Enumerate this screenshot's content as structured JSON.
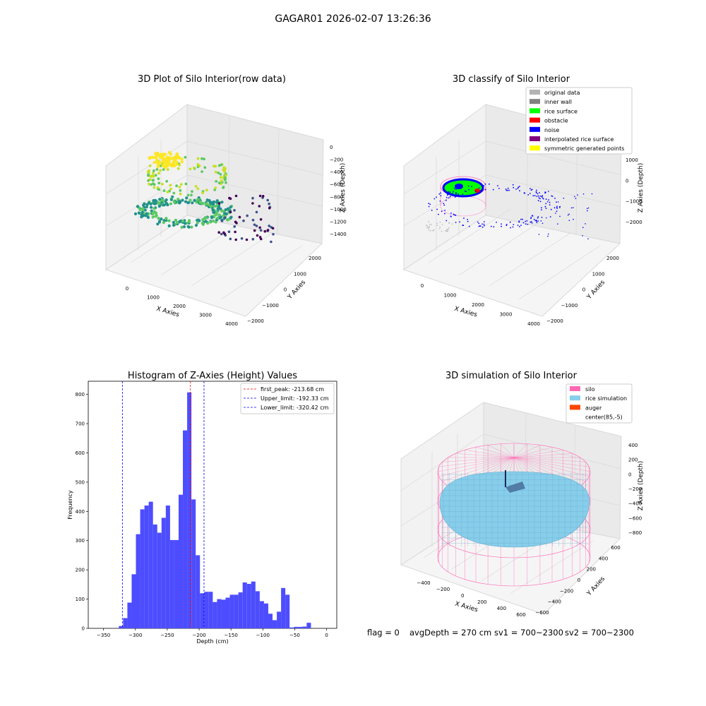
{
  "suptitle": "GAGAR01 2026-02-07 13:26:36",
  "footer": {
    "flag": "flag = 0",
    "avg": "avgDepth = 270 cm",
    "sv1": "sv1 = 700~2300",
    "sv2": "sv2 = 700~2300"
  },
  "colors": {
    "hist_bar": "#4d4dff",
    "peak_line": "#ff0000",
    "limit_line": "#0000ff",
    "pane": "#f2f2f2",
    "grid": "#d9d9d9",
    "silo": "#ff69b4",
    "rice": "#87ceeb",
    "auger": "#ff4500"
  },
  "chart_data": [
    {
      "id": "raw",
      "type": "scatter",
      "title": "3D Plot of Silo Interior(row data)",
      "xlabel": "X Axies",
      "ylabel": "Y Axies",
      "zlabel": "Z Axies (Depth)",
      "xticks": [
        "0",
        "1000",
        "2000",
        "3000",
        "4000"
      ],
      "yticks": [
        "−2000",
        "−1000",
        "0",
        "1000",
        "2000"
      ],
      "zticks": [
        "0",
        "−200",
        "−400",
        "−600",
        "−800",
        "−1000",
        "−1200",
        "−1400"
      ],
      "colormap": "viridis (colored by depth)"
    },
    {
      "id": "classify",
      "type": "scatter",
      "title": "3D classify of Silo Interior",
      "xlabel": "X Axies",
      "ylabel": "Y Axies",
      "zlabel": "Z Axies (Depth)",
      "xticks": [
        "0",
        "1000",
        "2000",
        "3000",
        "4000"
      ],
      "yticks": [
        "−2000",
        "−1000",
        "0",
        "1000",
        "2000"
      ],
      "zticks": [
        "1000",
        "0",
        "−1000",
        "−2000"
      ],
      "legend_position": "upper right",
      "legend": [
        {
          "label": "original data",
          "color": "#b3b3b3"
        },
        {
          "label": "inner wall",
          "color": "#808080"
        },
        {
          "label": "rice surface",
          "color": "#00ff00"
        },
        {
          "label": "obstacle",
          "color": "#ff0000"
        },
        {
          "label": "noise",
          "color": "#0000ff"
        },
        {
          "label": "interpolated rice surface",
          "color": "#800080"
        },
        {
          "label": "symmetric generated points",
          "color": "#ffff00"
        }
      ]
    },
    {
      "id": "hist",
      "type": "bar",
      "title": "Histogram of Z-Axies (Height) Values",
      "xlabel": "Depth (cm)",
      "ylabel": "Frequency",
      "xlim": [
        -374,
        16
      ],
      "ylim": [
        0,
        845
      ],
      "xticks": [
        -350,
        -300,
        -250,
        -200,
        -150,
        -100,
        -50,
        0
      ],
      "yticks": [
        0,
        100,
        200,
        300,
        400,
        500,
        600,
        700,
        800
      ],
      "bin_width": 6.7,
      "bins": [
        [
          -326.0,
          8
        ],
        [
          -319.3,
          35
        ],
        [
          -312.6,
          88
        ],
        [
          -305.9,
          185
        ],
        [
          -299.2,
          322
        ],
        [
          -292.5,
          407
        ],
        [
          -285.8,
          420
        ],
        [
          -279.1,
          433
        ],
        [
          -272.4,
          355
        ],
        [
          -265.7,
          327
        ],
        [
          -259.0,
          378
        ],
        [
          -252.3,
          420
        ],
        [
          -245.6,
          302
        ],
        [
          -238.9,
          302
        ],
        [
          -232.2,
          457
        ],
        [
          -225.5,
          677
        ],
        [
          -218.8,
          807
        ],
        [
          -212.1,
          441
        ],
        [
          -205.4,
          250
        ],
        [
          -198.7,
          120
        ],
        [
          -192.0,
          125
        ],
        [
          -185.3,
          125
        ],
        [
          -178.6,
          90
        ],
        [
          -171.9,
          100
        ],
        [
          -165.2,
          98
        ],
        [
          -158.5,
          105
        ],
        [
          -151.8,
          115
        ],
        [
          -145.1,
          115
        ],
        [
          -138.4,
          123
        ],
        [
          -131.7,
          157
        ],
        [
          -125.0,
          152
        ],
        [
          -118.3,
          160
        ],
        [
          -111.6,
          127
        ],
        [
          -104.9,
          93
        ],
        [
          -98.2,
          85
        ],
        [
          -91.5,
          50
        ],
        [
          -84.8,
          28
        ],
        [
          -78.1,
          57
        ],
        [
          -71.4,
          138
        ],
        [
          -64.7,
          115
        ],
        [
          -58.0,
          3
        ],
        [
          -51.3,
          5
        ],
        [
          -44.6,
          5
        ],
        [
          -37.9,
          6
        ],
        [
          -31.2,
          19
        ]
      ],
      "lines": [
        {
          "label": "first_peak: -213.68 cm",
          "x": -213.68,
          "color": "#ff0000"
        },
        {
          "label": "Upper_limit: -192.33 cm",
          "x": -192.33,
          "color": "#0000ff"
        },
        {
          "label": "Lower_limit: -320.42 cm",
          "x": -320.42,
          "color": "#0000ff"
        }
      ],
      "legend_position": "upper right"
    },
    {
      "id": "sim",
      "type": "scatter",
      "title": "3D simulation of Silo Interior",
      "xlabel": "X Axies",
      "ylabel": "Y Axies",
      "zlabel": "Z Axies (Depth)",
      "xticks": [
        "−400",
        "−200",
        "0",
        "200",
        "400",
        "600"
      ],
      "yticks": [
        "−600",
        "−400",
        "−200",
        "0",
        "200",
        "400",
        "600"
      ],
      "zticks": [
        "400",
        "200",
        "0",
        "−200",
        "−400",
        "−600",
        "−800"
      ],
      "legend_position": "upper right",
      "legend": [
        {
          "label": "silo",
          "color": "#ff69b4"
        },
        {
          "label": "rice simulation",
          "color": "#87ceeb"
        },
        {
          "label": "auger",
          "color": "#ff4500"
        },
        {
          "label": "center(85,-5)",
          "color": ""
        }
      ]
    }
  ]
}
